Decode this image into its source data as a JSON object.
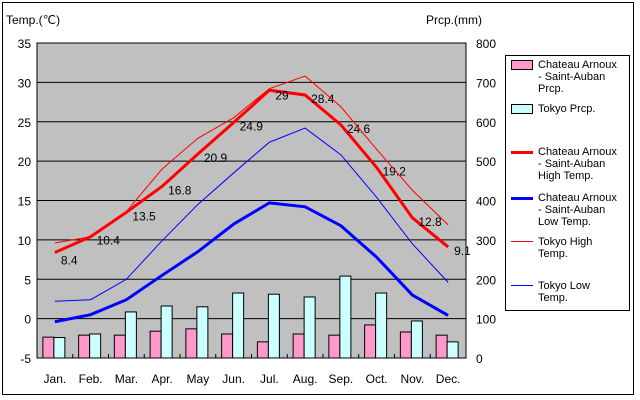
{
  "chart_data": {
    "type": "bar+line",
    "left_axis_label": "Temp.(℃)",
    "right_axis_label": "Prcp.(mm)",
    "ylim_left": [
      -5,
      35
    ],
    "ylim_right": [
      0,
      800
    ],
    "left_ticks": [
      "35",
      "30",
      "25",
      "20",
      "15",
      "10",
      "5",
      "0",
      "-5"
    ],
    "right_ticks": [
      "800",
      "700",
      "600",
      "500",
      "400",
      "300",
      "200",
      "100",
      "0"
    ],
    "categories": [
      "Jan.",
      "Feb.",
      "Mar.",
      "Apr.",
      "May",
      "Jun.",
      "Jul.",
      "Aug.",
      "Sep.",
      "Oct.",
      "Nov.",
      "Dec."
    ],
    "grid": true,
    "legend_placement": "right",
    "series": [
      {
        "name": "Chateau Arnoux\n- Saint-Auban\nPrcp.",
        "type": "bar",
        "axis": "right",
        "color": "#ff99cc",
        "values": [
          53,
          58,
          58,
          68,
          74,
          61,
          41,
          61,
          58,
          84,
          66,
          58
        ]
      },
      {
        "name": "Tokyo Prcp.",
        "type": "bar",
        "axis": "right",
        "color": "#ccffff",
        "values": [
          52,
          61,
          117,
          132,
          130,
          165,
          162,
          155,
          208,
          165,
          94,
          41
        ]
      },
      {
        "name": "Chateau Arnoux\n- Saint-Auban\nHigh Temp.",
        "type": "line",
        "axis": "left",
        "color": "#ff0000",
        "width": 3,
        "values": [
          8.4,
          10.4,
          13.5,
          16.8,
          20.9,
          24.9,
          29,
          28.4,
          24.6,
          19.2,
          12.8,
          9.1
        ],
        "labels": [
          "8.4",
          "10.4",
          "13.5",
          "16.8",
          "20.9",
          "24.9",
          "29",
          "28.4",
          "24.6",
          "19.2",
          "12.8",
          "9.1"
        ]
      },
      {
        "name": "Chateau Arnoux\n- Saint-Auban\nLow Temp.",
        "type": "line",
        "axis": "left",
        "color": "#0000ff",
        "width": 3,
        "values": [
          -0.4,
          0.5,
          2.4,
          5.5,
          8.5,
          12.0,
          14.7,
          14.2,
          11.8,
          7.8,
          3.0,
          0.4
        ]
      },
      {
        "name": "Tokyo High\nTemp.",
        "type": "line",
        "axis": "left",
        "color": "#ff0000",
        "width": 1,
        "values": [
          9.6,
          10.4,
          13.6,
          19.0,
          22.9,
          25.5,
          29.2,
          30.8,
          26.9,
          21.5,
          16.3,
          11.9
        ]
      },
      {
        "name": "Tokyo Low\nTemp.",
        "type": "line",
        "axis": "left",
        "color": "#0000ff",
        "width": 1,
        "values": [
          2.2,
          2.4,
          5.0,
          9.9,
          14.5,
          18.5,
          22.4,
          24.2,
          20.8,
          15.4,
          9.5,
          4.6
        ]
      }
    ]
  }
}
